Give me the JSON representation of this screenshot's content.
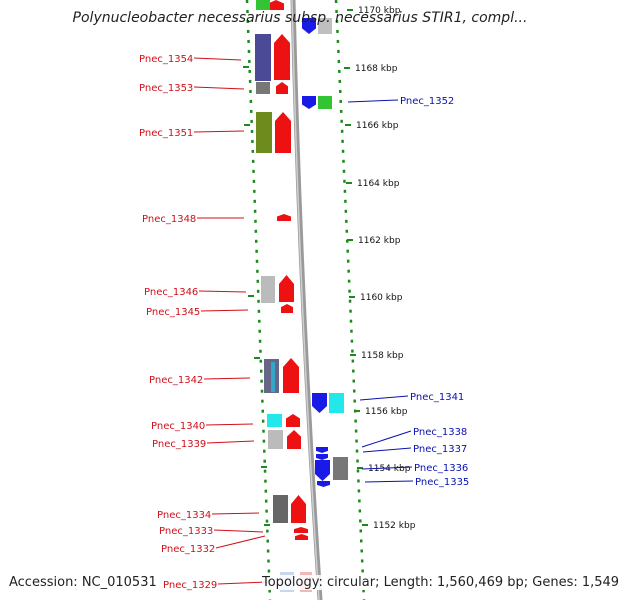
{
  "title": "Polynucleobacter necessarius subsp. necessarius STIR1, compl...",
  "footer": {
    "accession": "Accession: NC_010531",
    "summary": "Topology: circular; Length: 1,560,469 bp; Genes: 1,549"
  },
  "colors": {
    "forward_label": "#d0101a",
    "reverse_label": "#0a12b0",
    "dots": "#1e8a1e",
    "backbone": "#9a9a9a"
  },
  "scale_labels": [
    "1170 kbp",
    "1168 kbp",
    "1166 kbp",
    "1164 kbp",
    "1162 kbp",
    "1160 kbp",
    "1158 kbp",
    "1156 kbp",
    "1154 kbp",
    "1152 kbp"
  ],
  "forward_genes": [
    "Pnec_1354",
    "Pnec_1353",
    "Pnec_1351",
    "Pnec_1348",
    "Pnec_1346",
    "Pnec_1345",
    "Pnec_1342",
    "Pnec_1340",
    "Pnec_1339",
    "Pnec_1334",
    "Pnec_1333",
    "Pnec_1332",
    "Pnec_1329"
  ],
  "reverse_genes": [
    "Pnec_1352",
    "Pnec_1341",
    "Pnec_1338",
    "Pnec_1337",
    "Pnec_1336",
    "Pnec_1335"
  ]
}
